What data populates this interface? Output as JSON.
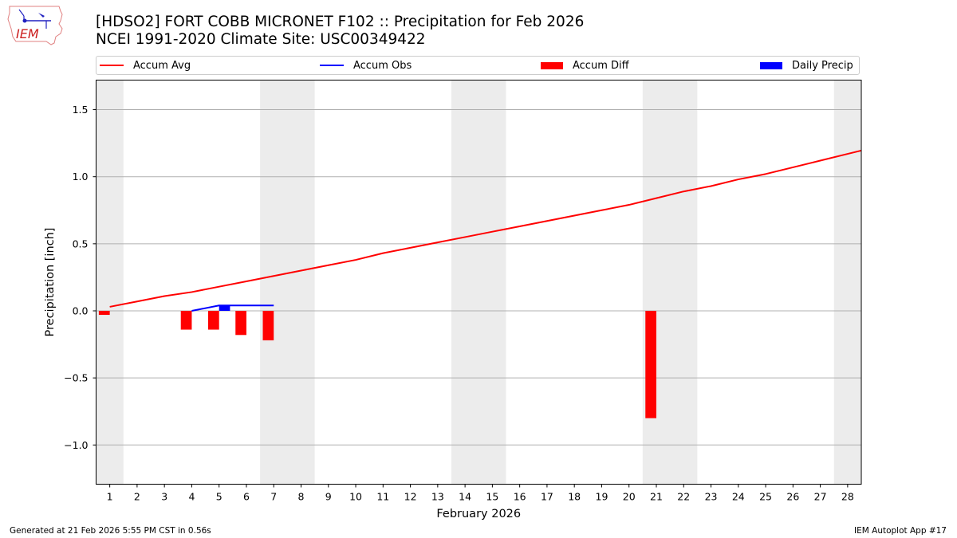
{
  "header": {
    "title_line1": "[HDSO2] FORT COBB MICRONET F102 :: Precipitation for Feb 2026",
    "title_line2": "NCEI 1991-2020 Climate Site: USC00349422",
    "logo_text": "IEM"
  },
  "legend": {
    "items": [
      {
        "label": "Accum Avg",
        "kind": "line",
        "color": "#ff0000"
      },
      {
        "label": "Accum Obs",
        "kind": "line",
        "color": "#0000ff"
      },
      {
        "label": "Accum Diff",
        "kind": "bar",
        "color": "#ff0000"
      },
      {
        "label": "Daily Precip",
        "kind": "bar",
        "color": "#0000ff"
      }
    ]
  },
  "footer": {
    "generated": "Generated at 21 Feb 2026 5:55 PM CST in 0.56s",
    "app": "IEM Autoplot App #17"
  },
  "colors": {
    "avg": "#ff0000",
    "obs": "#0000ff",
    "diff": "#ff0000",
    "daily": "#0000ff",
    "weekend": "#ececec",
    "grid": "#b0b0b0"
  },
  "chart_data": {
    "type": "line",
    "title": "[HDSO2] FORT COBB MICRONET F102 :: Precipitation for Feb 2026",
    "subtitle": "NCEI 1991-2020 Climate Site: USC00349422",
    "xlabel": "February 2026",
    "ylabel": "Precipitation [inch]",
    "xlim": [
      0.5,
      28.5
    ],
    "ylim": [
      -1.3,
      1.72
    ],
    "yticks": [
      -1.0,
      -0.5,
      0.0,
      0.5,
      1.0,
      1.5
    ],
    "ytick_labels": [
      "−1.0",
      "−0.5",
      "0.0",
      "0.5",
      "1.0",
      "1.5"
    ],
    "x": [
      1,
      2,
      3,
      4,
      5,
      6,
      7,
      8,
      9,
      10,
      11,
      12,
      13,
      14,
      15,
      16,
      17,
      18,
      19,
      20,
      21,
      22,
      23,
      24,
      25,
      26,
      27,
      28
    ],
    "grid": "y",
    "legend_position": "top",
    "weekend_spans": [
      [
        0.5,
        1.5
      ],
      [
        6.5,
        8.5
      ],
      [
        13.5,
        15.5
      ],
      [
        20.5,
        22.5
      ],
      [
        27.5,
        28.5
      ]
    ],
    "series": [
      {
        "name": "Accum Avg",
        "type": "line",
        "color": "#ff0000",
        "x": [
          1,
          2,
          3,
          4,
          5,
          6,
          7,
          8,
          9,
          10,
          11,
          12,
          13,
          14,
          15,
          16,
          17,
          18,
          19,
          20,
          21,
          22,
          23,
          24,
          25,
          26,
          27,
          28,
          29
        ],
        "values": [
          0.03,
          0.07,
          0.11,
          0.14,
          0.18,
          0.22,
          0.26,
          0.3,
          0.34,
          0.38,
          0.43,
          0.47,
          0.51,
          0.55,
          0.59,
          0.63,
          0.67,
          0.71,
          0.75,
          0.79,
          0.84,
          0.89,
          0.93,
          0.98,
          1.02,
          1.07,
          1.12,
          1.17,
          1.22
        ]
      },
      {
        "name": "Accum Obs",
        "type": "line",
        "color": "#0000ff",
        "x": [
          4,
          5,
          6,
          7
        ],
        "values": [
          0.0,
          0.04,
          0.04,
          0.04
        ]
      },
      {
        "name": "Accum Diff",
        "type": "bar",
        "color": "#ff0000",
        "x": [
          1,
          4,
          5,
          6,
          7,
          21
        ],
        "values": [
          -0.03,
          -0.14,
          -0.14,
          -0.18,
          -0.22,
          -0.8
        ]
      },
      {
        "name": "Daily Precip",
        "type": "bar",
        "color": "#0000ff",
        "x": [
          5
        ],
        "values": [
          0.04
        ]
      }
    ]
  }
}
